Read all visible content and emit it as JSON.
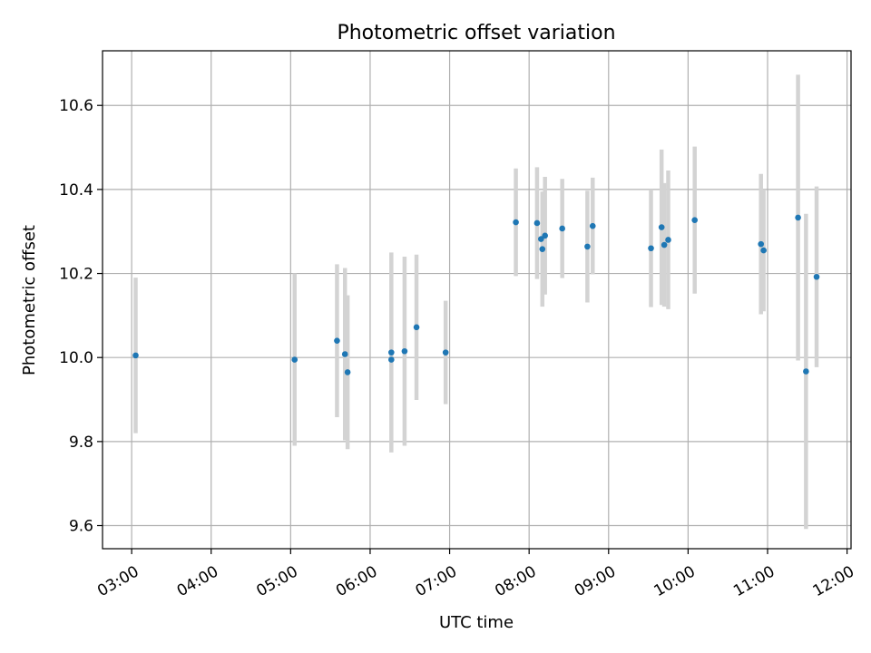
{
  "chart_data": {
    "type": "scatter",
    "title": "Photometric offset variation",
    "xlabel": "UTC time",
    "ylabel": "Photometric offset",
    "x_unit": "time-of-day (HH:MM, UTC)",
    "xlim": [
      "02:38",
      "12:03"
    ],
    "ylim": [
      9.545,
      10.73
    ],
    "x_ticks": [
      "03:00",
      "04:00",
      "05:00",
      "06:00",
      "07:00",
      "08:00",
      "09:00",
      "10:00",
      "11:00",
      "12:00"
    ],
    "y_ticks": [
      9.6,
      9.8,
      10.0,
      10.2,
      10.4,
      10.6
    ],
    "y_tick_labels": [
      "9.6",
      "9.8",
      "10.0",
      "10.2",
      "10.4",
      "10.6"
    ],
    "grid": true,
    "colors": {
      "points": "#1f77b4",
      "errorbars": "#d3d3d3"
    },
    "points": [
      {
        "x": "03:03",
        "y": 10.005,
        "err": 0.185
      },
      {
        "x": "05:03",
        "y": 9.995,
        "err": 0.205
      },
      {
        "x": "05:35",
        "y": 10.04,
        "err": 0.182
      },
      {
        "x": "05:41",
        "y": 10.008,
        "err": 0.205
      },
      {
        "x": "05:43",
        "y": 9.965,
        "err": 0.183
      },
      {
        "x": "06:16",
        "y": 10.012,
        "err": 0.238
      },
      {
        "x": "06:16",
        "y": 9.995,
        "err": 0.0
      },
      {
        "x": "06:26",
        "y": 10.015,
        "err": 0.225
      },
      {
        "x": "06:35",
        "y": 10.072,
        "err": 0.173
      },
      {
        "x": "06:57",
        "y": 10.012,
        "err": 0.123
      },
      {
        "x": "07:50",
        "y": 10.322,
        "err": 0.128
      },
      {
        "x": "08:06",
        "y": 10.32,
        "err": 0.133
      },
      {
        "x": "08:09",
        "y": 10.282,
        "err": 0.0
      },
      {
        "x": "08:10",
        "y": 10.258,
        "err": 0.137
      },
      {
        "x": "08:12",
        "y": 10.29,
        "err": 0.14
      },
      {
        "x": "08:25",
        "y": 10.307,
        "err": 0.118
      },
      {
        "x": "08:44",
        "y": 10.264,
        "err": 0.133
      },
      {
        "x": "08:48",
        "y": 10.313,
        "err": 0.115
      },
      {
        "x": "09:32",
        "y": 10.26,
        "err": 0.14
      },
      {
        "x": "09:40",
        "y": 10.31,
        "err": 0.185
      },
      {
        "x": "09:42",
        "y": 10.268,
        "err": 0.147
      },
      {
        "x": "09:45",
        "y": 10.28,
        "err": 0.165
      },
      {
        "x": "10:05",
        "y": 10.327,
        "err": 0.175
      },
      {
        "x": "10:55",
        "y": 10.27,
        "err": 0.167
      },
      {
        "x": "10:57",
        "y": 10.255,
        "err": 0.145
      },
      {
        "x": "11:23",
        "y": 10.333,
        "err": 0.34
      },
      {
        "x": "11:29",
        "y": 9.967,
        "err": 0.375
      },
      {
        "x": "11:37",
        "y": 10.192,
        "err": 0.215
      }
    ]
  }
}
